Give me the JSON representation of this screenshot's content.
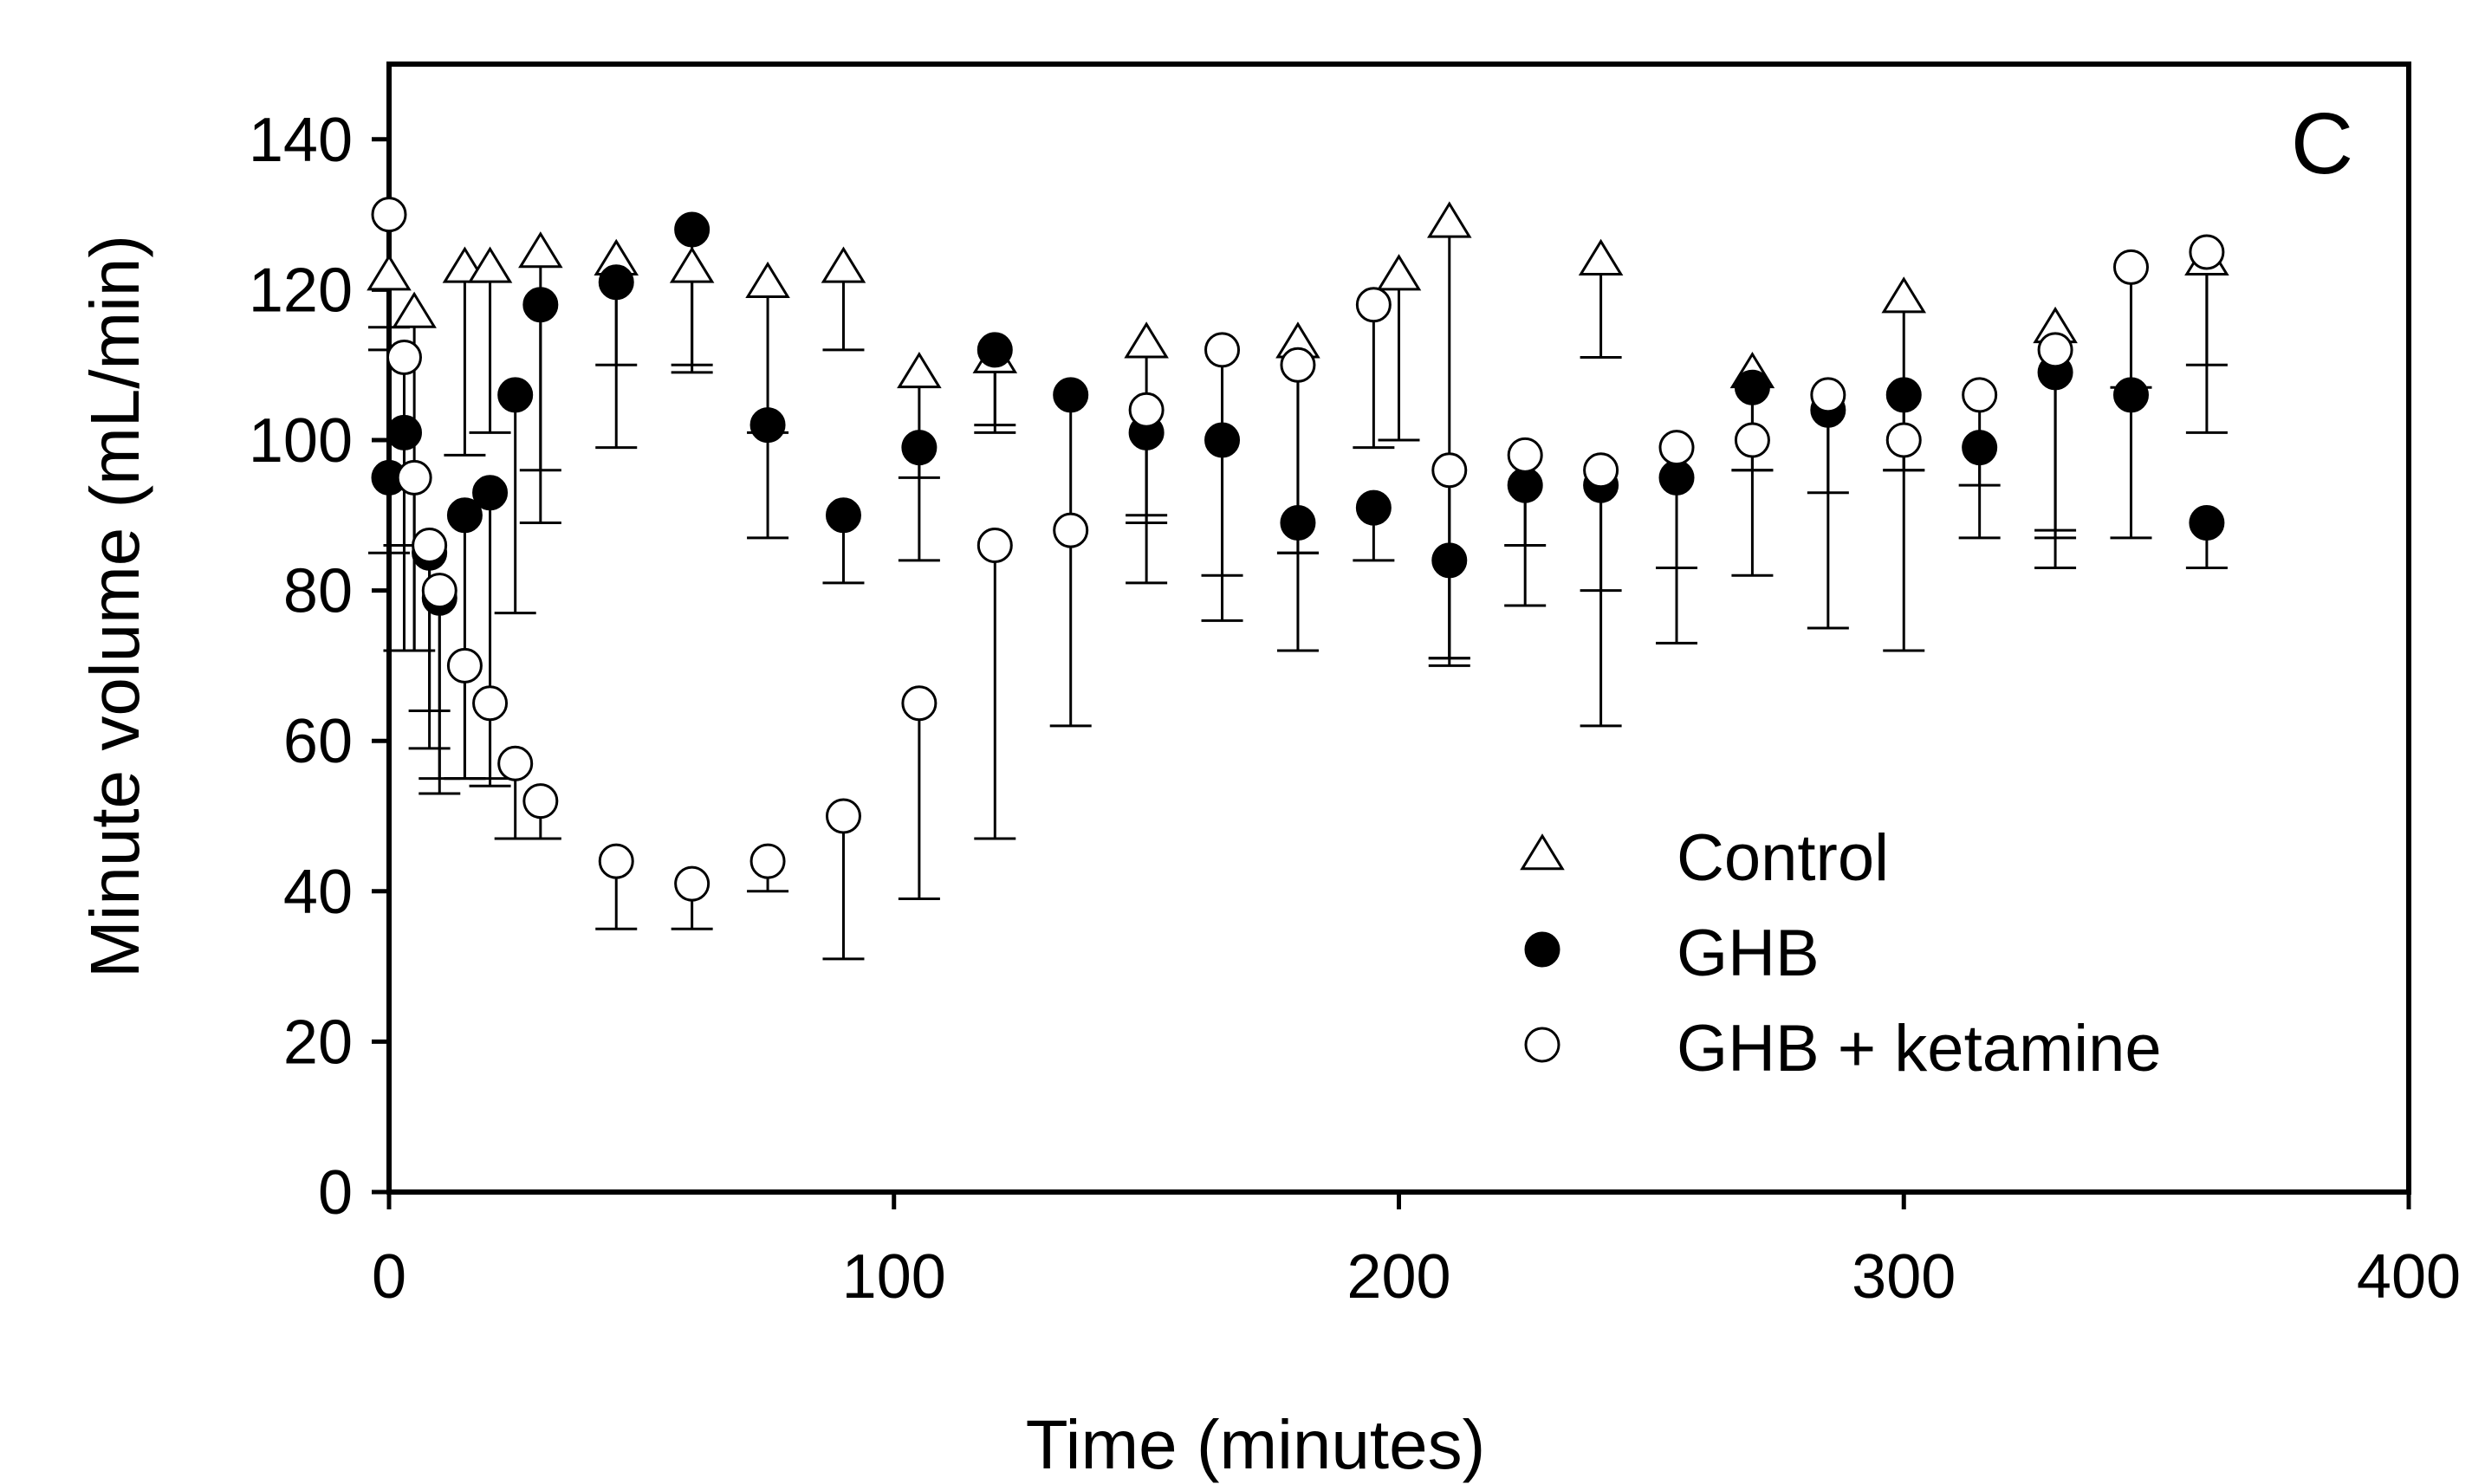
{
  "chart_data": {
    "type": "scatter",
    "panel_label": "C",
    "xlabel": "Time (minutes)",
    "ylabel": "Minute volume (mL/min)",
    "xlim": [
      0,
      400
    ],
    "ylim": [
      0,
      150
    ],
    "xticks": [
      0,
      100,
      200,
      300,
      400
    ],
    "yticks": [
      0,
      20,
      40,
      60,
      80,
      100,
      120,
      140
    ],
    "legend_position": "lower-right",
    "series": [
      {
        "name": "Control",
        "marker": "open-triangle",
        "error_direction": "down",
        "points": [
          {
            "x": 0,
            "y": 122,
            "err": 10
          },
          {
            "x": 5,
            "y": 117,
            "err": 45
          },
          {
            "x": 15,
            "y": 123,
            "err": 25
          },
          {
            "x": 20,
            "y": 123,
            "err": 22
          },
          {
            "x": 30,
            "y": 125,
            "err": 29
          },
          {
            "x": 45,
            "y": 124,
            "err": 14
          },
          {
            "x": 60,
            "y": 123,
            "err": 13
          },
          {
            "x": 75,
            "y": 121,
            "err": 20
          },
          {
            "x": 90,
            "y": 123,
            "err": 11
          },
          {
            "x": 105,
            "y": 109,
            "err": 14
          },
          {
            "x": 120,
            "y": 111,
            "err": 9
          },
          {
            "x": 150,
            "y": 113,
            "err": 23
          },
          {
            "x": 180,
            "y": 113,
            "err": 28
          },
          {
            "x": 200,
            "y": 122,
            "err": 22
          },
          {
            "x": 210,
            "y": 129,
            "err": 58
          },
          {
            "x": 240,
            "y": 124,
            "err": 13
          },
          {
            "x": 270,
            "y": 109,
            "err": 13
          },
          {
            "x": 300,
            "y": 119,
            "err": 23
          },
          {
            "x": 330,
            "y": 115,
            "err": 27
          },
          {
            "x": 360,
            "y": 124,
            "err": 14
          }
        ]
      },
      {
        "name": "GHB",
        "marker": "filled-circle",
        "error_direction": "down",
        "points": [
          {
            "x": 0,
            "y": 95,
            "err": 10
          },
          {
            "x": 3,
            "y": 101,
            "err": 29
          },
          {
            "x": 8,
            "y": 85,
            "err": 26
          },
          {
            "x": 10,
            "y": 79,
            "err": 26
          },
          {
            "x": 15,
            "y": 90,
            "err": 35
          },
          {
            "x": 20,
            "y": 93,
            "err": 39
          },
          {
            "x": 25,
            "y": 106,
            "err": 29
          },
          {
            "x": 30,
            "y": 118,
            "err": 29
          },
          {
            "x": 45,
            "y": 121,
            "err": 22
          },
          {
            "x": 60,
            "y": 128,
            "err": 19
          },
          {
            "x": 75,
            "y": 102,
            "err": 15
          },
          {
            "x": 90,
            "y": 90,
            "err": 9
          },
          {
            "x": 105,
            "y": 99,
            "err": 15
          },
          {
            "x": 120,
            "y": 112,
            "err": 11
          },
          {
            "x": 135,
            "y": 106,
            "err": 44
          },
          {
            "x": 150,
            "y": 101,
            "err": 20
          },
          {
            "x": 165,
            "y": 100,
            "err": 24
          },
          {
            "x": 180,
            "y": 89,
            "err": 17
          },
          {
            "x": 195,
            "y": 91,
            "err": 7
          },
          {
            "x": 210,
            "y": 84,
            "err": 14
          },
          {
            "x": 225,
            "y": 94,
            "err": 16
          },
          {
            "x": 240,
            "y": 94,
            "err": 32
          },
          {
            "x": 255,
            "y": 95,
            "err": 22
          },
          {
            "x": 270,
            "y": 107,
            "err": 25
          },
          {
            "x": 285,
            "y": 104,
            "err": 29
          },
          {
            "x": 300,
            "y": 106,
            "err": 34
          },
          {
            "x": 315,
            "y": 99,
            "err": 12
          },
          {
            "x": 330,
            "y": 109,
            "err": 26
          },
          {
            "x": 345,
            "y": 106,
            "err": 19
          },
          {
            "x": 360,
            "y": 89,
            "err": 6
          }
        ]
      },
      {
        "name": "GHB + ketamine",
        "marker": "open-circle",
        "error_direction": "down",
        "points": [
          {
            "x": 0,
            "y": 130,
            "err": 15
          },
          {
            "x": 3,
            "y": 111,
            "err": 25
          },
          {
            "x": 5,
            "y": 95,
            "err": 23
          },
          {
            "x": 8,
            "y": 86,
            "err": 22
          },
          {
            "x": 10,
            "y": 80,
            "err": 25
          },
          {
            "x": 15,
            "y": 70,
            "err": 15
          },
          {
            "x": 20,
            "y": 65,
            "err": 10
          },
          {
            "x": 25,
            "y": 57,
            "err": 10
          },
          {
            "x": 30,
            "y": 52,
            "err": 5
          },
          {
            "x": 45,
            "y": 44,
            "err": 9
          },
          {
            "x": 60,
            "y": 41,
            "err": 6
          },
          {
            "x": 75,
            "y": 44,
            "err": 4
          },
          {
            "x": 90,
            "y": 50,
            "err": 19
          },
          {
            "x": 105,
            "y": 65,
            "err": 26
          },
          {
            "x": 120,
            "y": 86,
            "err": 39
          },
          {
            "x": 135,
            "y": 88,
            "err": 0
          },
          {
            "x": 150,
            "y": 104,
            "err": 15
          },
          {
            "x": 165,
            "y": 112,
            "err": 30
          },
          {
            "x": 180,
            "y": 110,
            "err": 25
          },
          {
            "x": 195,
            "y": 118,
            "err": 19
          },
          {
            "x": 210,
            "y": 96,
            "err": 25
          },
          {
            "x": 225,
            "y": 98,
            "err": 12
          },
          {
            "x": 240,
            "y": 96,
            "err": 16
          },
          {
            "x": 255,
            "y": 99,
            "err": 16
          },
          {
            "x": 270,
            "y": 100,
            "err": 4
          },
          {
            "x": 285,
            "y": 106,
            "err": 13
          },
          {
            "x": 300,
            "y": 100,
            "err": 4
          },
          {
            "x": 315,
            "y": 106,
            "err": 12
          },
          {
            "x": 330,
            "y": 112,
            "err": 25
          },
          {
            "x": 345,
            "y": 123,
            "err": 16
          },
          {
            "x": 360,
            "y": 125,
            "err": 24
          }
        ]
      }
    ]
  }
}
